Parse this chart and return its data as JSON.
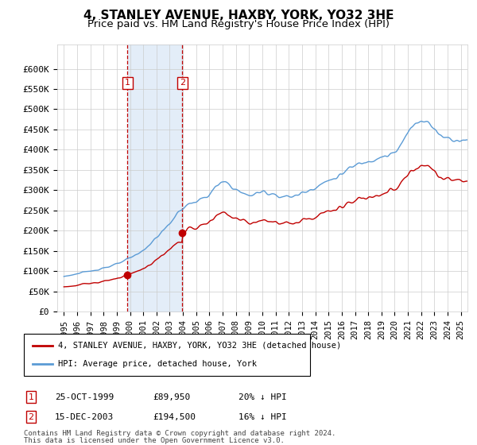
{
  "title": "4, STANLEY AVENUE, HAXBY, YORK, YO32 3HE",
  "subtitle": "Price paid vs. HM Land Registry's House Price Index (HPI)",
  "hpi_label": "HPI: Average price, detached house, York",
  "price_label": "4, STANLEY AVENUE, HAXBY, YORK, YO32 3HE (detached house)",
  "sale1_date": "25-OCT-1999",
  "sale1_price": 89950,
  "sale1_hpi_text": "20% ↓ HPI",
  "sale1_x": 1999.81,
  "sale2_date": "15-DEC-2003",
  "sale2_price": 194500,
  "sale2_hpi_text": "16% ↓ HPI",
  "sale2_x": 2003.96,
  "ylim_min": 0,
  "ylim_max": 660000,
  "xlim_min": 1994.5,
  "xlim_max": 2025.5,
  "hpi_color": "#5b9bd5",
  "price_color": "#c00000",
  "shade_color": "#dce9f7",
  "vline_color": "#c00000",
  "grid_color": "#cccccc",
  "background_color": "#ffffff",
  "title_fontsize": 11,
  "subtitle_fontsize": 9.5,
  "ytick_labels": [
    "£0",
    "£50K",
    "£100K",
    "£150K",
    "£200K",
    "£250K",
    "£300K",
    "£350K",
    "£400K",
    "£450K",
    "£500K",
    "£550K",
    "£600K"
  ],
  "ytick_values": [
    0,
    50000,
    100000,
    150000,
    200000,
    250000,
    300000,
    350000,
    400000,
    450000,
    500000,
    550000,
    600000
  ],
  "xtick_years": [
    1995,
    1996,
    1997,
    1998,
    1999,
    2000,
    2001,
    2002,
    2003,
    2004,
    2005,
    2006,
    2007,
    2008,
    2009,
    2010,
    2011,
    2012,
    2013,
    2014,
    2015,
    2016,
    2017,
    2018,
    2019,
    2020,
    2021,
    2022,
    2023,
    2024,
    2025
  ],
  "footnote": "Contains HM Land Registry data © Crown copyright and database right 2024.\nThis data is licensed under the Open Government Licence v3.0."
}
